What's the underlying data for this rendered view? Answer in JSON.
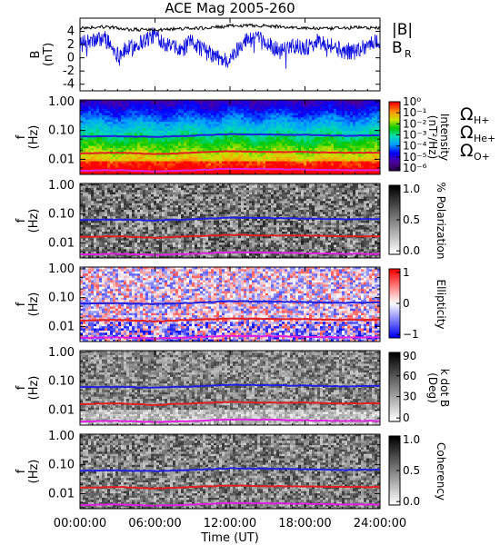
{
  "chart_data": {
    "title": "ACE Mag 2005-260",
    "type": "line",
    "xlabel": "Time (UT)",
    "x_ticks": [
      "00:00:00",
      "06:00:00",
      "12:00:00",
      "18:00:00",
      "24:00:00"
    ],
    "legend_labels": {
      "B_total": "|B|",
      "BR": "B",
      "BR_sub": "R"
    },
    "cyclotron_labels": [
      {
        "symbol": "Ω",
        "sub": "H+",
        "color": "#2020e0"
      },
      {
        "symbol": "Ω",
        "sub": "He+",
        "color": "#e02020"
      },
      {
        "symbol": "Ω",
        "sub": "O+",
        "color": "#e020e0"
      }
    ],
    "panels": [
      {
        "name": "magnetic-field",
        "type": "line",
        "ylabel": "B",
        "yunit": "(nT)",
        "ylim": [
          -5,
          6
        ],
        "y_ticks": [
          "4",
          "2",
          "0",
          "-2",
          "-4"
        ],
        "series": [
          {
            "name": "|B|",
            "color": "#000000",
            "x": [
              0,
              2,
              4,
              6,
              8,
              10,
              12,
              14,
              16,
              18,
              20,
              22,
              24
            ],
            "values": [
              4.5,
              4.7,
              4.3,
              4.2,
              4.4,
              4.5,
              4.8,
              4.9,
              4.7,
              4.5,
              4.4,
              4.6,
              4.5
            ]
          },
          {
            "name": "B_R",
            "color": "#1010e0",
            "x": [
              0,
              1,
              2,
              3,
              4,
              5,
              6,
              7,
              8,
              9,
              10,
              11,
              12,
              13,
              14,
              15,
              16,
              17,
              18,
              19,
              20,
              21,
              22,
              23,
              24
            ],
            "values": [
              2.0,
              2.5,
              3.0,
              0.5,
              1.5,
              2.5,
              3.5,
              2.0,
              1.0,
              2.5,
              1.0,
              0.0,
              -0.5,
              2.5,
              3.0,
              2.0,
              1.0,
              2.0,
              1.5,
              2.5,
              2.0,
              1.0,
              1.0,
              2.0,
              2.5
            ]
          }
        ]
      },
      {
        "name": "intensity",
        "type": "heatmap",
        "ylabel": "f",
        "yunit": "(Hz)",
        "y_ticks": [
          "1.00",
          "0.10",
          "0.01"
        ],
        "colorbar_label": "Intensity",
        "colorbar_unit": "(nT²/Hz)",
        "colorbar_ticks": [
          "10⁰",
          "10⁻¹",
          "10⁻²",
          "10⁻³",
          "10⁻⁴",
          "10⁻⁵",
          "10⁻⁶"
        ]
      },
      {
        "name": "polarization",
        "type": "heatmap",
        "ylabel": "f",
        "yunit": "(Hz)",
        "y_ticks": [
          "1.00",
          "0.10",
          "0.01"
        ],
        "colorbar_label": "% Polarization",
        "colorbar_ticks": [
          "1.0",
          "0.5",
          "0.0"
        ]
      },
      {
        "name": "ellipticity",
        "type": "heatmap",
        "ylabel": "f",
        "yunit": "(Hz)",
        "y_ticks": [
          "1.00",
          "0.10",
          "0.01"
        ],
        "colorbar_label": "Ellipticity",
        "colorbar_ticks": [
          "1",
          "0",
          "−1"
        ]
      },
      {
        "name": "k-dot-b",
        "type": "heatmap",
        "ylabel": "f",
        "yunit": "(Hz)",
        "y_ticks": [
          "1.00",
          "0.10",
          "0.01"
        ],
        "colorbar_label": "k dot B",
        "colorbar_unit": "(Deg)",
        "colorbar_ticks": [
          "90",
          "60",
          "30",
          "0"
        ]
      },
      {
        "name": "coherency",
        "type": "heatmap",
        "ylabel": "f",
        "yunit": "(Hz)",
        "y_ticks": [
          "1.00",
          "0.10",
          "0.01"
        ],
        "colorbar_label": "Coherency",
        "colorbar_ticks": [
          "1.0",
          "0.5",
          "0.0"
        ]
      }
    ],
    "cyclotron_frequencies_hz": {
      "H+": {
        "x": [
          0,
          3,
          6,
          9,
          12,
          15,
          18,
          21,
          24
        ],
        "values": [
          0.062,
          0.064,
          0.06,
          0.066,
          0.075,
          0.073,
          0.07,
          0.066,
          0.068
        ]
      },
      "He+": {
        "x": [
          0,
          3,
          6,
          9,
          12,
          15,
          18,
          21,
          24
        ],
        "values": [
          0.016,
          0.017,
          0.015,
          0.017,
          0.019,
          0.018,
          0.018,
          0.017,
          0.017
        ]
      },
      "O+": {
        "x": [
          0,
          3,
          6,
          9,
          12,
          15,
          18,
          21,
          24
        ],
        "values": [
          0.004,
          0.0042,
          0.0038,
          0.0042,
          0.0047,
          0.0046,
          0.0044,
          0.0042,
          0.0042
        ]
      }
    }
  }
}
